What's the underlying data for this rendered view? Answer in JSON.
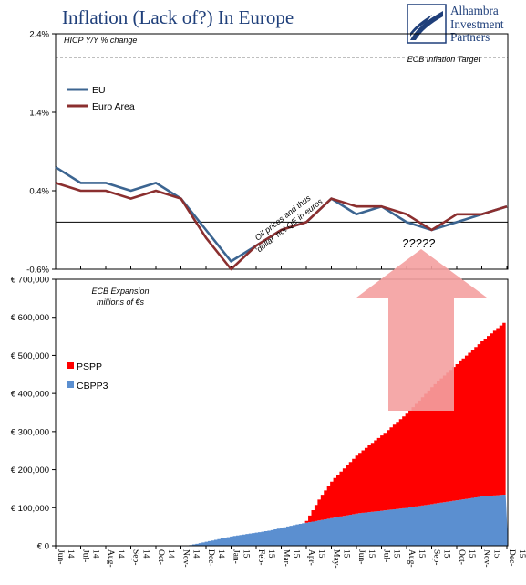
{
  "header": {
    "title": "Inflation (Lack of?) In Europe",
    "logo_lines": [
      "Alhambra",
      "Investment",
      "Partners"
    ]
  },
  "colors": {
    "eu": "#3c6591",
    "euro_area": "#8b2f2f",
    "pspp": "#ff0000",
    "cbpp3": "#5b8fd0",
    "arrow": "#f4a0a0",
    "title": "#1f3f7a"
  },
  "chart_data": [
    {
      "type": "line",
      "title": "",
      "ylabel": "HICP Y/Y % change",
      "ylim": [
        -0.6,
        2.4
      ],
      "y_ticks": [
        "2.4%",
        "1.4%",
        "0.4%",
        "-0.6%"
      ],
      "y_tick_values": [
        2.4,
        1.4,
        0.4,
        -0.6
      ],
      "zero_line": 0,
      "x": [
        "Jun-14",
        "Jul-14",
        "Aug-14",
        "Sep-14",
        "Oct-14",
        "Nov-14",
        "Dec-14",
        "Jan-15",
        "Feb-15",
        "Mar-15",
        "Apr-15",
        "May-15",
        "Jun-15",
        "Jul-15",
        "Aug-15",
        "Sep-15",
        "Oct-15",
        "Nov-15",
        "Dec-15"
      ],
      "series": [
        {
          "name": "EU",
          "values": [
            0.7,
            0.5,
            0.5,
            0.4,
            0.5,
            0.3,
            -0.1,
            -0.5,
            -0.3,
            -0.1,
            0.0,
            0.3,
            0.1,
            0.2,
            0.0,
            -0.1,
            0.0,
            0.1,
            0.2
          ]
        },
        {
          "name": "Euro Area",
          "values": [
            0.5,
            0.4,
            0.4,
            0.3,
            0.4,
            0.3,
            -0.2,
            -0.6,
            -0.3,
            -0.1,
            0.0,
            0.3,
            0.2,
            0.2,
            0.1,
            -0.1,
            0.1,
            0.1,
            0.2
          ]
        }
      ],
      "reference_line": {
        "label": "ECB Inflation Target",
        "value": 2.1
      },
      "legend_position": "top-left",
      "annotations": [
        "Oil prices and thus",
        "'dollar' not QE in euros",
        "?????"
      ]
    },
    {
      "type": "area",
      "title": "",
      "ylabel": "ECB Expansion millions of €s",
      "ylabel_lines": [
        "ECB Expansion",
        "millions of €s"
      ],
      "ylim": [
        0,
        700000
      ],
      "y_ticks": [
        "€ 0",
        "€ 100,000",
        "€ 200,000",
        "€ 300,000",
        "€ 400,000",
        "€ 500,000",
        "€ 600,000",
        "€ 700,000"
      ],
      "y_tick_values": [
        0,
        100000,
        200000,
        300000,
        400000,
        500000,
        600000,
        700000
      ],
      "x_tick_labels": [
        [
          "Jun-",
          "14"
        ],
        [
          "Jul-",
          "14"
        ],
        [
          "Aug-",
          "14"
        ],
        [
          "Sep-",
          "14"
        ],
        [
          "Oct-",
          "14"
        ],
        [
          "Nov-",
          "14"
        ],
        [
          "Dec-",
          "14"
        ],
        [
          "Jan-",
          "15"
        ],
        [
          "Feb-",
          "15"
        ],
        [
          "Mar-",
          "15"
        ],
        [
          "Apr-",
          "15"
        ],
        [
          "May-",
          "15"
        ],
        [
          "Jun-",
          "15"
        ],
        [
          "Jul-",
          "15"
        ],
        [
          "Aug-",
          "15"
        ],
        [
          "Sep-",
          "15"
        ],
        [
          "Oct-",
          "15"
        ],
        [
          "Nov-",
          "15"
        ],
        [
          "Dec-",
          "15"
        ]
      ],
      "stacked": true,
      "series": [
        {
          "name": "CBPP3",
          "anchors": [
            [
              5.2,
              0
            ],
            [
              7,
              25000
            ],
            [
              8.5,
              40000
            ],
            [
              9.5,
              55000
            ],
            [
              12,
              85000
            ],
            [
              14,
              100000
            ],
            [
              15,
              110000
            ],
            [
              16,
              120000
            ],
            [
              17,
              130000
            ],
            [
              18,
              135000
            ],
            [
              19,
              135000
            ]
          ]
        },
        {
          "name": "PSPP",
          "anchors": [
            [
              9.9,
              0
            ],
            [
              10.05,
              15000
            ],
            [
              10.5,
              60000
            ],
            [
              11,
              100000
            ],
            [
              12,
              155000
            ],
            [
              13,
              200000
            ],
            [
              14,
              250000
            ],
            [
              15,
              310000
            ],
            [
              16,
              360000
            ],
            [
              17,
              410000
            ],
            [
              18,
              460000
            ],
            [
              19,
              495000
            ]
          ]
        }
      ],
      "legend_position": "left"
    }
  ]
}
